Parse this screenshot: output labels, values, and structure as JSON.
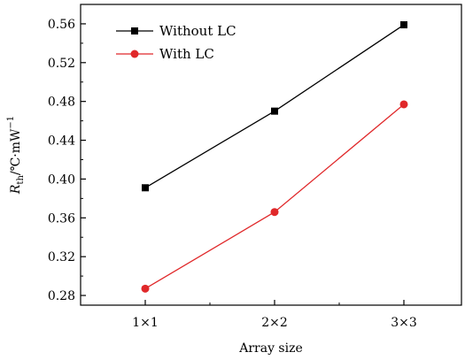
{
  "chart_data": {
    "type": "line",
    "categories": [
      "1×1",
      "2×2",
      "3×3"
    ],
    "series": [
      {
        "name": "Without LC",
        "values": [
          0.391,
          0.47,
          0.559
        ],
        "color": "#000000",
        "marker": "square"
      },
      {
        "name": "With LC",
        "values": [
          0.287,
          0.366,
          0.477
        ],
        "color": "#e0282a",
        "marker": "circle"
      }
    ],
    "title": "",
    "xlabel": "Array size",
    "ylabel": {
      "main": "R",
      "sub": "th",
      "unit": "/℃·mW",
      "sup": "−1"
    },
    "ylim": [
      0.27,
      0.58
    ],
    "yticks": [
      "0.28",
      "0.32",
      "0.36",
      "0.40",
      "0.44",
      "0.48",
      "0.52",
      "0.56"
    ],
    "grid": false,
    "legend_position": "top-left"
  }
}
